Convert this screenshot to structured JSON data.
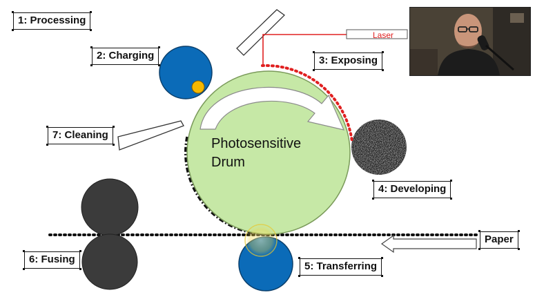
{
  "labels": {
    "processing": "1: Processing",
    "charging": "2: Charging",
    "exposing": "3: Exposing",
    "developing": "4: Developing",
    "transferring": "5: Transferring",
    "fusing": "6: Fusing",
    "cleaning": "7: Cleaning",
    "paper": "Paper",
    "laser": "Laser",
    "drum_line1": "Photosensitive",
    "drum_line2": "Drum"
  },
  "colors": {
    "drum_fill": "#c6e8a6",
    "drum_stroke": "#7a9a5a",
    "roller_blue": "#0b6bb8",
    "charge_dot": "#f5b800",
    "developer": "#1a1a1a",
    "fuser": "#3b3b3b",
    "laser": "#e02020",
    "transfer_glow": "#f2d23a"
  }
}
